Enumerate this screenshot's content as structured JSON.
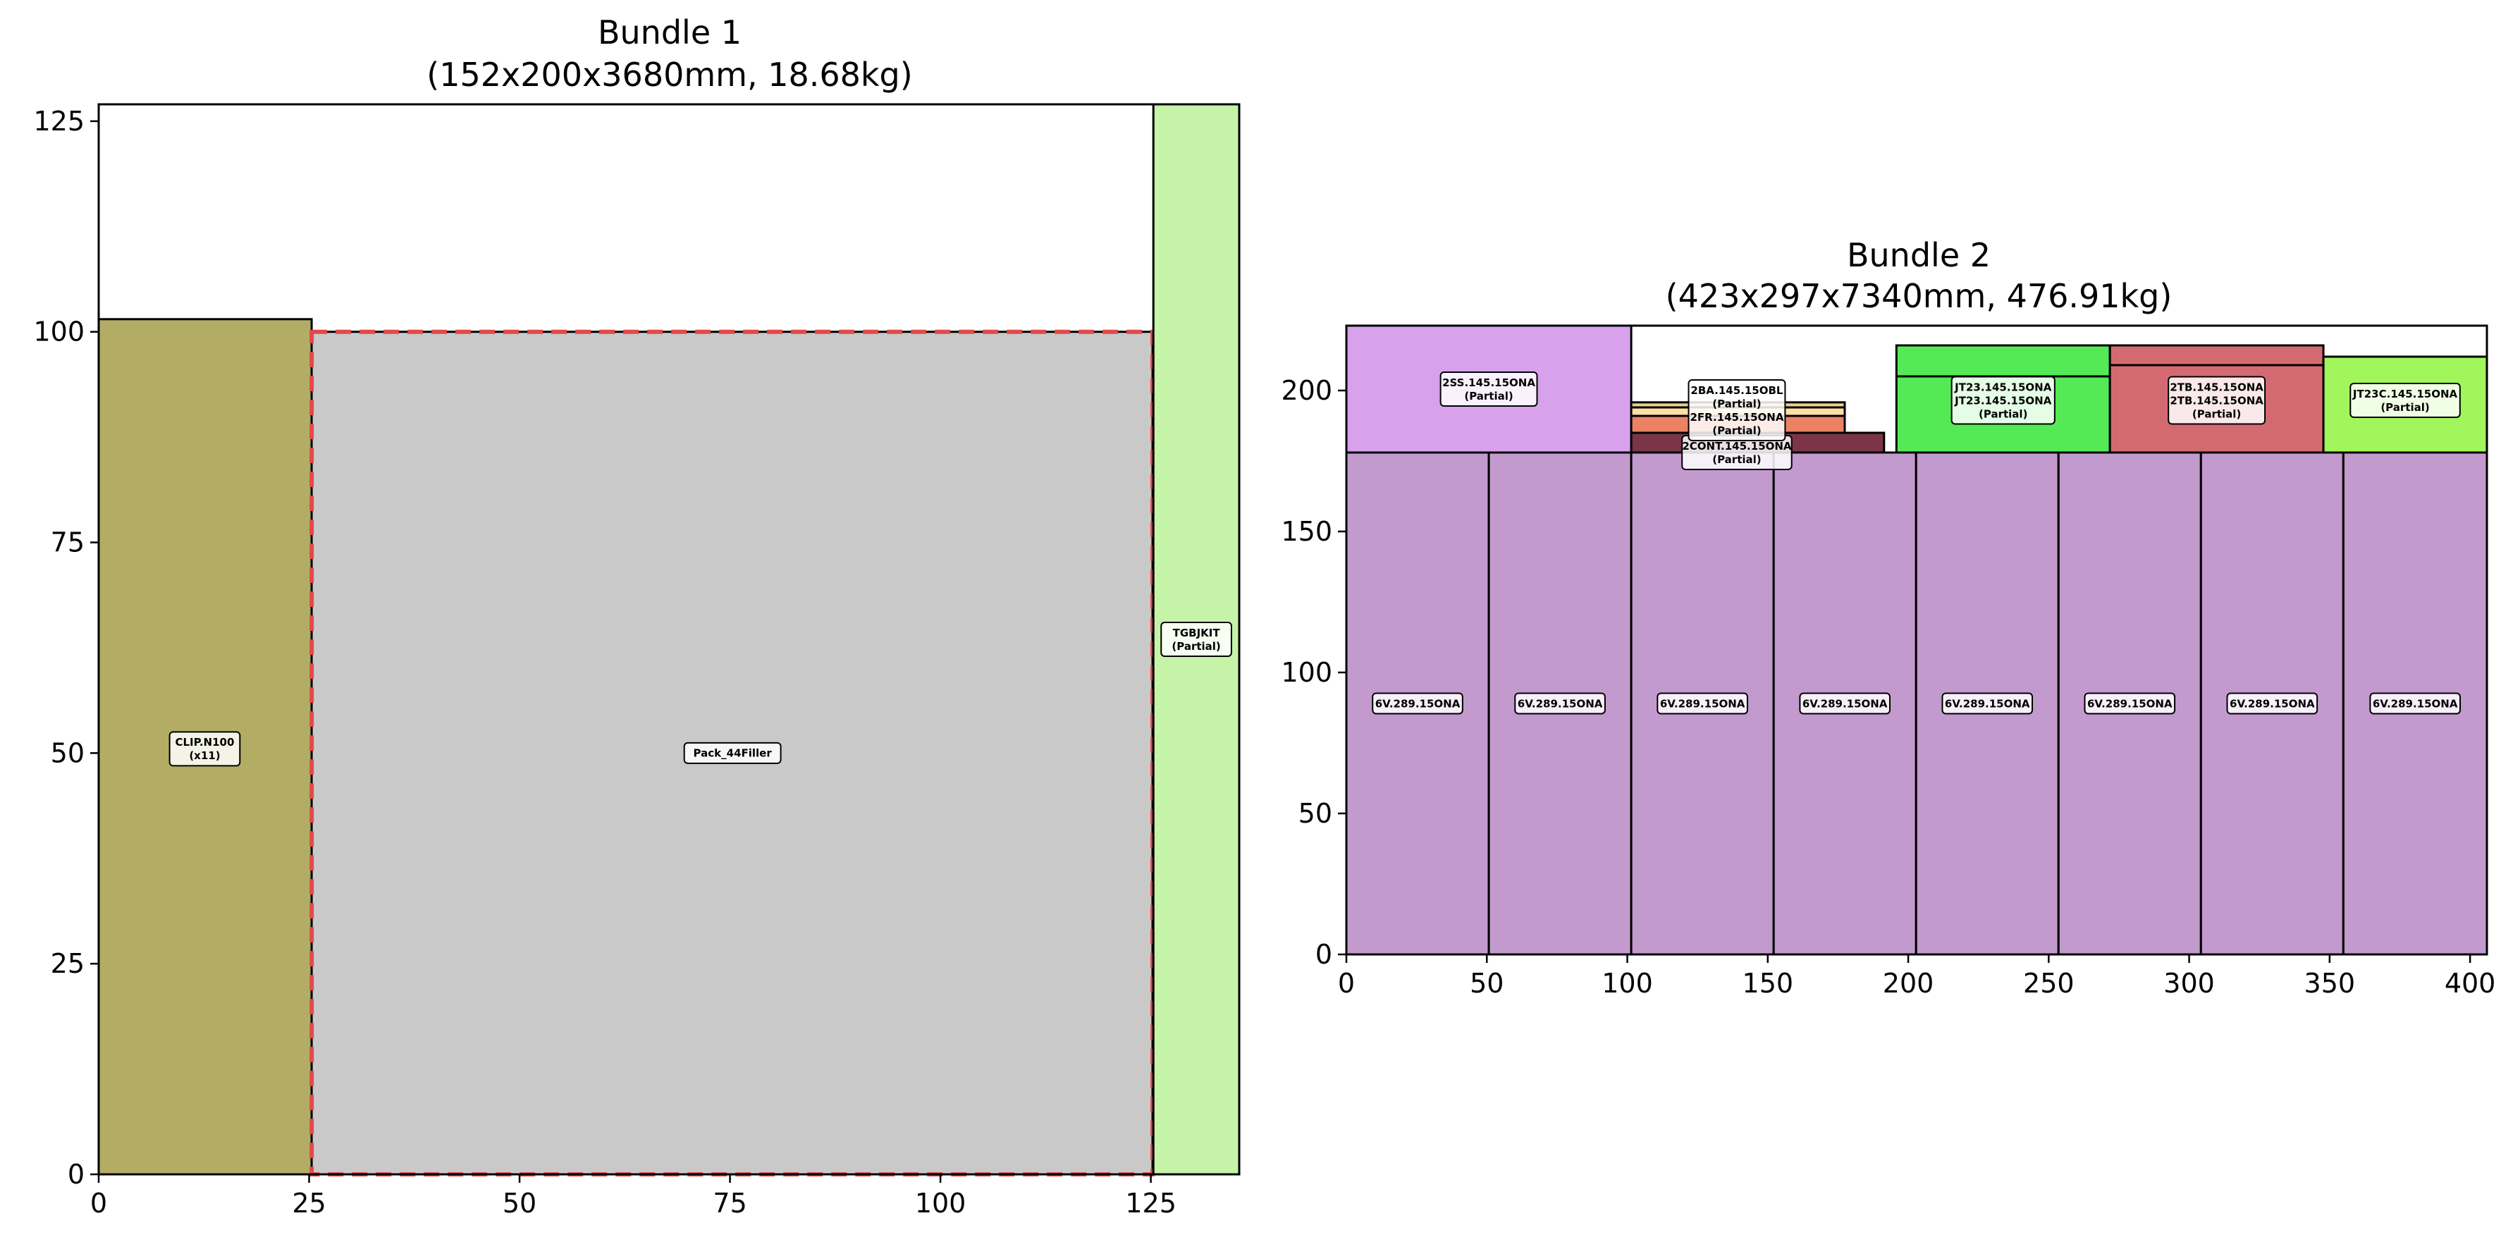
{
  "chart_data": [
    {
      "type": "packing-layout",
      "title": "Bundle 1",
      "subtitle": "(152x200x3680mm, 18.68kg)",
      "xlim": [
        0,
        135.5
      ],
      "ylim": [
        0,
        127
      ],
      "xticks": [
        0,
        25,
        50,
        75,
        100,
        125
      ],
      "yticks": [
        0,
        25,
        50,
        75,
        100,
        125
      ],
      "items": [
        {
          "x": 0,
          "y": 0,
          "w": 25.3,
          "h": 101.5,
          "color": "#b3ac64",
          "label": "CLIP.N100\n(x11)",
          "lx": 12.6,
          "ly": 50.5
        },
        {
          "x": 25.3,
          "y": 0,
          "w": 99.9,
          "h": 100,
          "color": "#c9c9c9",
          "label": "Pack_44Filler",
          "lx": 75.3,
          "ly": 50,
          "dashed": true
        },
        {
          "x": 125.3,
          "y": 0,
          "w": 10.2,
          "h": 127,
          "color": "#c5f3a8",
          "label": "TGBJKIT\n(Partial)",
          "lx": 130.4,
          "ly": 63.5
        }
      ]
    },
    {
      "type": "packing-layout",
      "title": "Bundle 2",
      "subtitle": "(423x297x7340mm, 476.91kg)",
      "xlim": [
        0,
        406
      ],
      "ylim": [
        0,
        223
      ],
      "xticks": [
        0,
        50,
        100,
        150,
        200,
        250,
        300,
        350,
        400
      ],
      "yticks": [
        0,
        50,
        100,
        150,
        200
      ],
      "items": [
        {
          "x": 0,
          "y": 0,
          "w": 50.7,
          "h": 178,
          "color": "#c39acd",
          "label": "6V.289.15ONA",
          "lx": 25.35,
          "ly": 89
        },
        {
          "x": 50.7,
          "y": 0,
          "w": 50.7,
          "h": 178,
          "color": "#c39acd",
          "label": "6V.289.15ONA",
          "lx": 76.05,
          "ly": 89
        },
        {
          "x": 101.4,
          "y": 0,
          "w": 50.7,
          "h": 178,
          "color": "#c39acd",
          "label": "6V.289.15ONA",
          "lx": 126.75,
          "ly": 89
        },
        {
          "x": 152.1,
          "y": 0,
          "w": 50.7,
          "h": 178,
          "color": "#c39acd",
          "label": "6V.289.15ONA",
          "lx": 177.45,
          "ly": 89
        },
        {
          "x": 202.8,
          "y": 0,
          "w": 50.7,
          "h": 178,
          "color": "#c39acd",
          "label": "6V.289.15ONA",
          "lx": 228.15,
          "ly": 89
        },
        {
          "x": 253.5,
          "y": 0,
          "w": 50.7,
          "h": 178,
          "color": "#c39acd",
          "label": "6V.289.15ONA",
          "lx": 278.85,
          "ly": 89
        },
        {
          "x": 304.2,
          "y": 0,
          "w": 50.7,
          "h": 178,
          "color": "#c39acd",
          "label": "6V.289.15ONA",
          "lx": 329.55,
          "ly": 89
        },
        {
          "x": 354.9,
          "y": 0,
          "w": 51.1,
          "h": 178,
          "color": "#c39acd",
          "label": "6V.289.15ONA",
          "lx": 380.45,
          "ly": 89
        },
        {
          "x": 0,
          "y": 178,
          "w": 101.4,
          "h": 45,
          "color": "#d7a1ec",
          "label": "2SS.145.15ONA\n(Partial)",
          "lx": 50.7,
          "ly": 200.5
        },
        {
          "x": 101.4,
          "y": 178,
          "w": 90,
          "h": 7,
          "color": "#7b3448",
          "label": "2CONT.145.15ONA\n(Partial)",
          "lx": 139,
          "ly": 178
        },
        {
          "x": 101.4,
          "y": 185,
          "w": 76,
          "h": 6,
          "color": "#eb8264",
          "label": "",
          "lx": 0,
          "ly": 0
        },
        {
          "x": 101.4,
          "y": 191,
          "w": 76,
          "h": 3,
          "color": "#fbe0a4",
          "label": "",
          "lx": 0,
          "ly": 0
        },
        {
          "x": 101.4,
          "y": 194,
          "w": 76,
          "h": 1.8,
          "color": "#e9d08a",
          "label": "2BA.145.15OBL\n(Partial)\n2FR.145.15ONA\n(Partial)",
          "lx": 139,
          "ly": 193
        },
        {
          "x": 195.8,
          "y": 178,
          "w": 76,
          "h": 38,
          "color": "#54ea56",
          "label": "JT23.145.15ONA\nJT23.145.15ONA\n(Partial)",
          "lx": 233.8,
          "ly": 196.5
        },
        {
          "x": 195.8,
          "y": 205,
          "w": 76,
          "h": 0,
          "color": "#54ea56",
          "label": "",
          "lx": 0,
          "ly": 0
        },
        {
          "x": 271.8,
          "y": 178,
          "w": 76,
          "h": 38,
          "color": "#d46a71",
          "label": "2TB.145.15ONA\n2TB.145.15ONA\n(Partial)",
          "lx": 309.8,
          "ly": 196.5
        },
        {
          "x": 271.8,
          "y": 209,
          "w": 76,
          "h": 0,
          "color": "#d46a71",
          "label": "",
          "lx": 0,
          "ly": 0
        },
        {
          "x": 347.8,
          "y": 178,
          "w": 58.2,
          "h": 34,
          "color": "#a0f65a",
          "label": "JT23C.145.15ONA\n(Partial)",
          "lx": 376.9,
          "ly": 196.5
        }
      ]
    }
  ]
}
